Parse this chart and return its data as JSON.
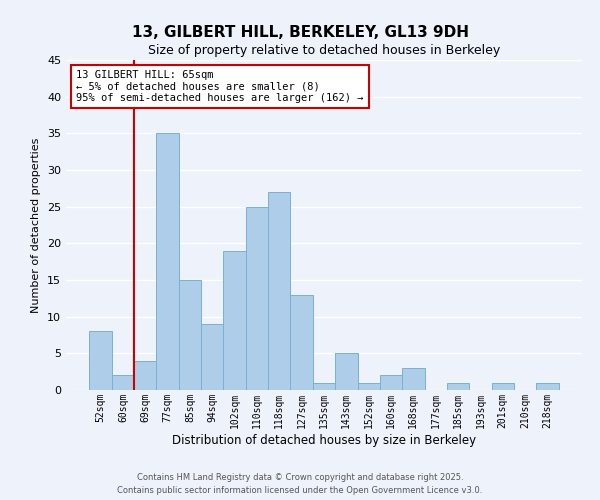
{
  "title": "13, GILBERT HILL, BERKELEY, GL13 9DH",
  "subtitle": "Size of property relative to detached houses in Berkeley",
  "xlabel": "Distribution of detached houses by size in Berkeley",
  "ylabel": "Number of detached properties",
  "footer_line1": "Contains HM Land Registry data © Crown copyright and database right 2025.",
  "footer_line2": "Contains public sector information licensed under the Open Government Licence v3.0.",
  "bin_labels": [
    "52sqm",
    "60sqm",
    "69sqm",
    "77sqm",
    "85sqm",
    "94sqm",
    "102sqm",
    "110sqm",
    "118sqm",
    "127sqm",
    "135sqm",
    "143sqm",
    "152sqm",
    "160sqm",
    "168sqm",
    "177sqm",
    "185sqm",
    "193sqm",
    "201sqm",
    "210sqm",
    "218sqm"
  ],
  "bar_values": [
    8,
    2,
    4,
    35,
    15,
    9,
    19,
    25,
    27,
    13,
    1,
    5,
    1,
    2,
    3,
    0,
    1,
    0,
    1,
    0,
    1
  ],
  "bar_color": "#aecde8",
  "bar_edge_color": "#7ab0d4",
  "ylim": [
    0,
    45
  ],
  "yticks": [
    0,
    5,
    10,
    15,
    20,
    25,
    30,
    35,
    40,
    45
  ],
  "vline_bin_index": 2,
  "vline_color": "#cc0000",
  "annotation_title": "13 GILBERT HILL: 65sqm",
  "annotation_line1": "← 5% of detached houses are smaller (8)",
  "annotation_line2": "95% of semi-detached houses are larger (162) →",
  "annotation_box_edgecolor": "#cc0000",
  "bg_color": "#eef2fb",
  "grid_color": "#ffffff"
}
